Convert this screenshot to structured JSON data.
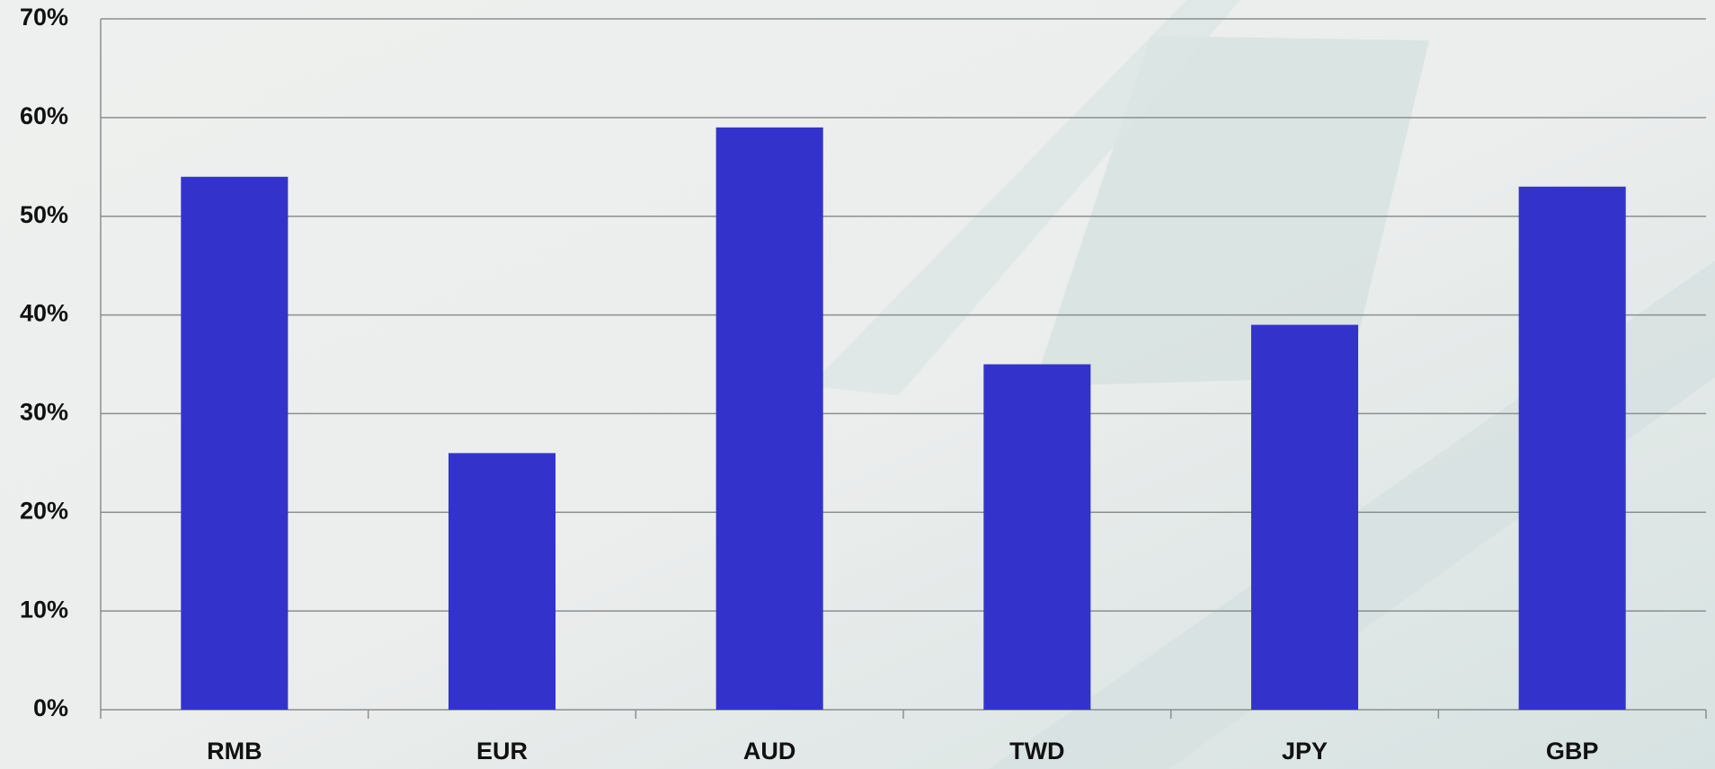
{
  "chart_data": {
    "type": "bar",
    "categories": [
      "RMB",
      "EUR",
      "AUD",
      "TWD",
      "JPY",
      "GBP"
    ],
    "values": [
      54,
      26,
      59,
      35,
      39,
      53
    ],
    "color": "#3333cc",
    "ylim": [
      0,
      70
    ],
    "yticks": [
      {
        "value": 0,
        "label": "0%"
      },
      {
        "value": 10,
        "label": "10%"
      },
      {
        "value": 20,
        "label": "20%"
      },
      {
        "value": 30,
        "label": "30%"
      },
      {
        "value": 40,
        "label": "40%"
      },
      {
        "value": 50,
        "label": "50%"
      },
      {
        "value": 60,
        "label": "60%"
      },
      {
        "value": 70,
        "label": "70%"
      }
    ],
    "grid": true
  }
}
